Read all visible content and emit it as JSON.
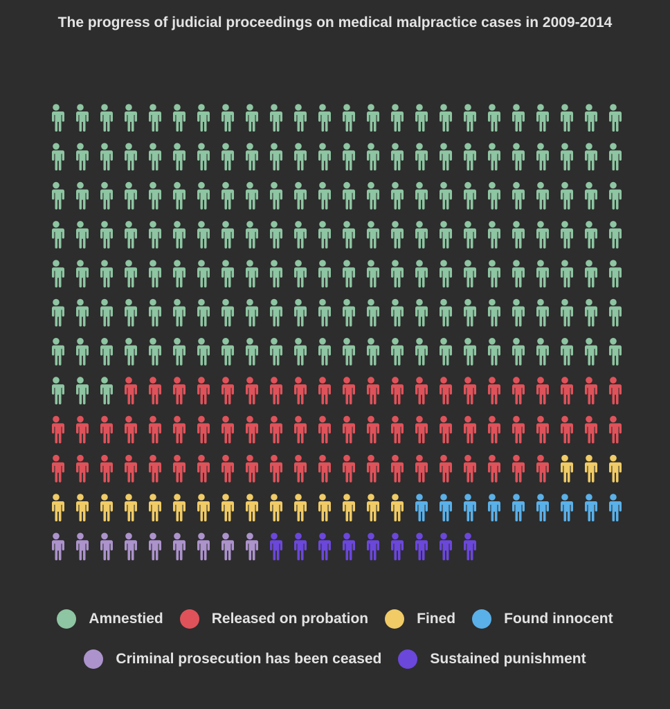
{
  "chart_data": {
    "type": "pictogram",
    "title": "The progress of judicial proceedings on medical malpractice cases in 2009-2014",
    "icon": "person-icon",
    "columns": 24,
    "rows": 12,
    "categories": [
      {
        "name": "Amnestied",
        "value": 171,
        "color": "#8ec5a2"
      },
      {
        "name": "Released on probation",
        "value": 66,
        "color": "#e0525a"
      },
      {
        "name": "Fined",
        "value": 18,
        "color": "#f0cb66"
      },
      {
        "name": "Found innocent",
        "value": 9,
        "color": "#5ab0e8"
      },
      {
        "name": "Criminal prosecution has been ceased",
        "value": 9,
        "color": "#ac93cc"
      },
      {
        "name": "Sustained punishment",
        "value": 9,
        "color": "#6b47db"
      }
    ],
    "legend_position": "bottom"
  }
}
